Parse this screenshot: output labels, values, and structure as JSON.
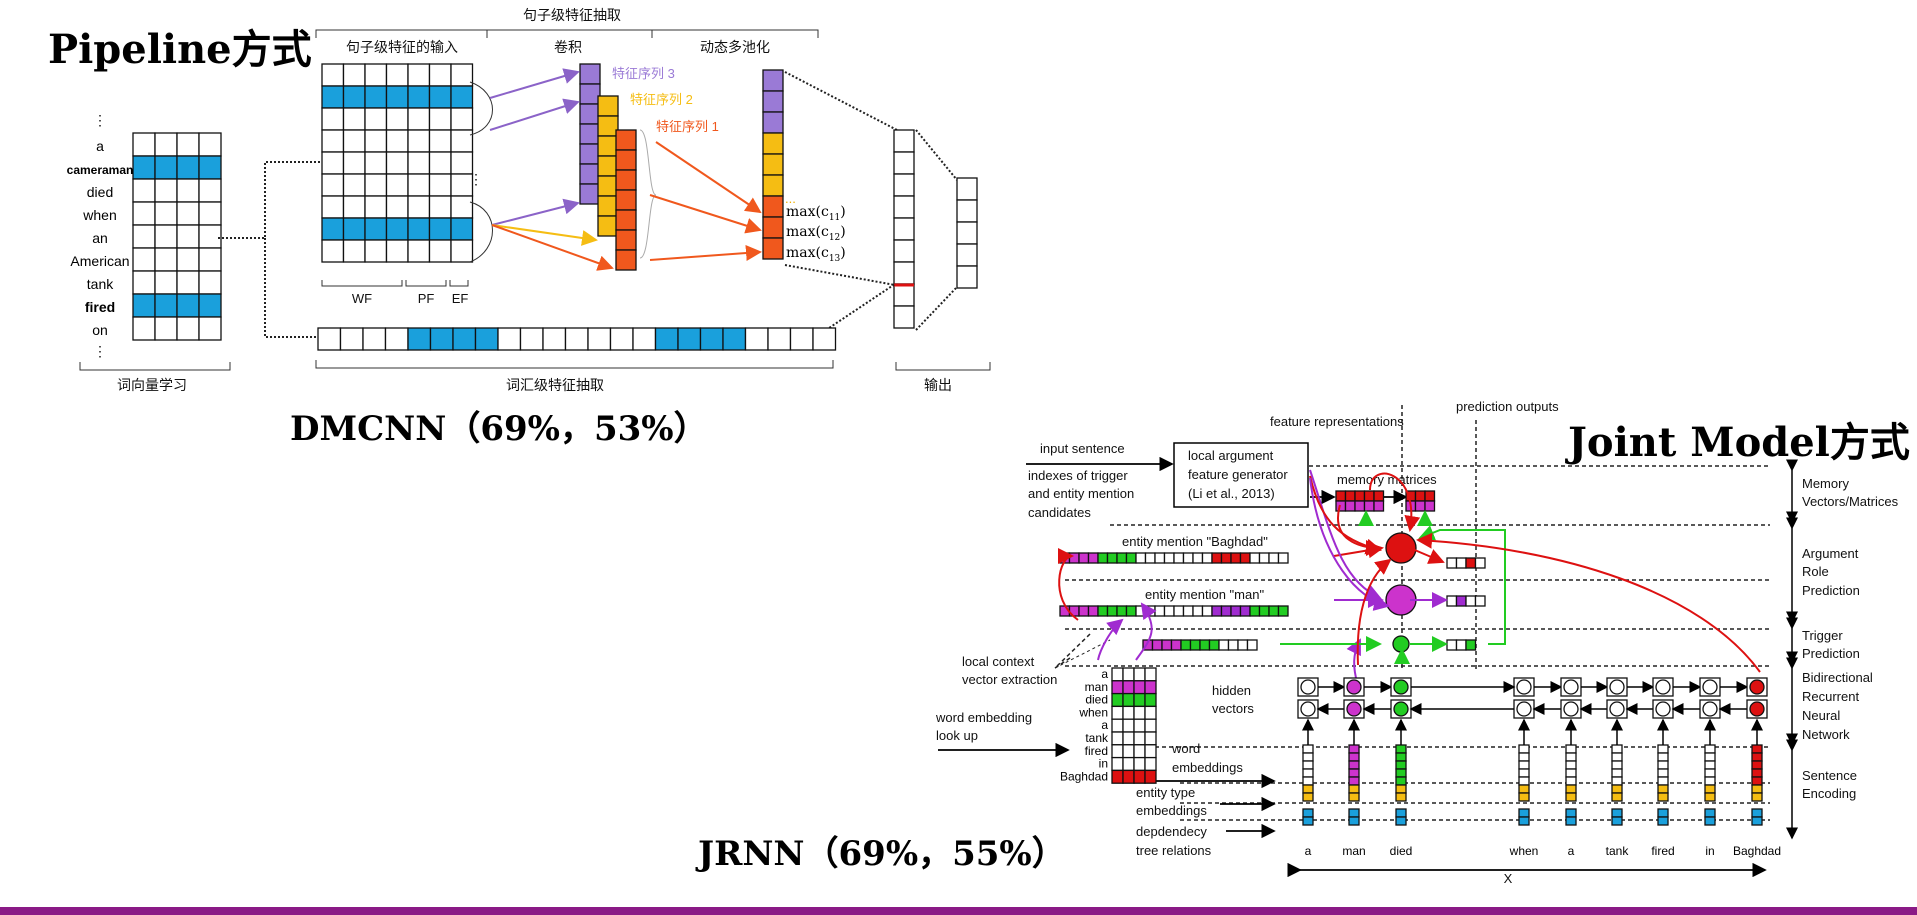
{
  "titles": {
    "pipeline": "Pipeline方式",
    "joint": "Joint Model方式",
    "dmcnn": "DMCNN（69%，53%）",
    "jrnn": "JRNN（69%，55%）"
  },
  "dmcnn": {
    "top_header": "句子级特征抽取",
    "sub_input": "句子级特征的输入",
    "sub_conv": "卷积",
    "sub_pool": "动态多池化",
    "bottom_lexical": "词汇级特征抽取",
    "bottom_wordvec": "词向量学习",
    "bottom_output": "输出",
    "feature_labels": [
      "特征序列 3",
      "特征序列 2",
      "特征序列 1"
    ],
    "input_groups": [
      "WF",
      "PF",
      "EF"
    ],
    "max_labels": [
      "max(c11)",
      "max(c12)",
      "max(c13)"
    ],
    "ellipsis": "...",
    "words": [
      "a",
      "cameraman",
      "died",
      "when",
      "an",
      "American",
      "tank",
      "fired",
      "on"
    ],
    "vdots": "⋮"
  },
  "jrnn": {
    "input_sentence": "input sentence",
    "indexes_text": [
      "indexes of trigger",
      "and entity mention",
      "candidates"
    ],
    "local_arg": [
      "local argument",
      "feature generator",
      "(Li et al., 2013)"
    ],
    "feature_repr": "feature representations",
    "prediction_outputs": "prediction outputs",
    "memory_matrices": "memory matrices",
    "entity_baghdad": "entity mention \"Baghdad\"",
    "entity_man": "entity mention \"man\"",
    "local_context": [
      "local context",
      "vector extraction"
    ],
    "hidden_vectors": [
      "hidden",
      "vectors"
    ],
    "word_embedding_lookup": [
      "word embedding",
      "look up"
    ],
    "word_embeddings": [
      "word",
      "embeddings"
    ],
    "entity_type_emb": [
      "entity type",
      "embeddings"
    ],
    "dep_tree": [
      "depdendecy",
      "tree relations"
    ],
    "matrix_words": [
      "a",
      "man",
      "died",
      "when",
      "a",
      "tank",
      "fired",
      "in",
      "Baghdad"
    ],
    "bottom_words": [
      "a",
      "man",
      "died",
      "when",
      "a",
      "tank",
      "fired",
      "in",
      "Baghdad"
    ],
    "x_label": "X",
    "right_labels": {
      "memory": [
        "Memory",
        "Vectors/Matrices"
      ],
      "argument": [
        "Argument",
        "Role",
        "Prediction"
      ],
      "trigger": [
        "Trigger",
        "Prediction"
      ],
      "rnn": [
        "Bidirectional",
        "Recurrent",
        "Neural",
        "Network"
      ],
      "encoding": [
        "Sentence",
        "Encoding"
      ]
    }
  },
  "colors": {
    "blue": "#1aa0dc",
    "purple": "#9a7ad6",
    "yellow": "#f5bd13",
    "orange": "#f0581d",
    "magenta": "#cc33cc",
    "green": "#22cc22",
    "red": "#dd1111",
    "accent_bar": "#8a1a86"
  }
}
